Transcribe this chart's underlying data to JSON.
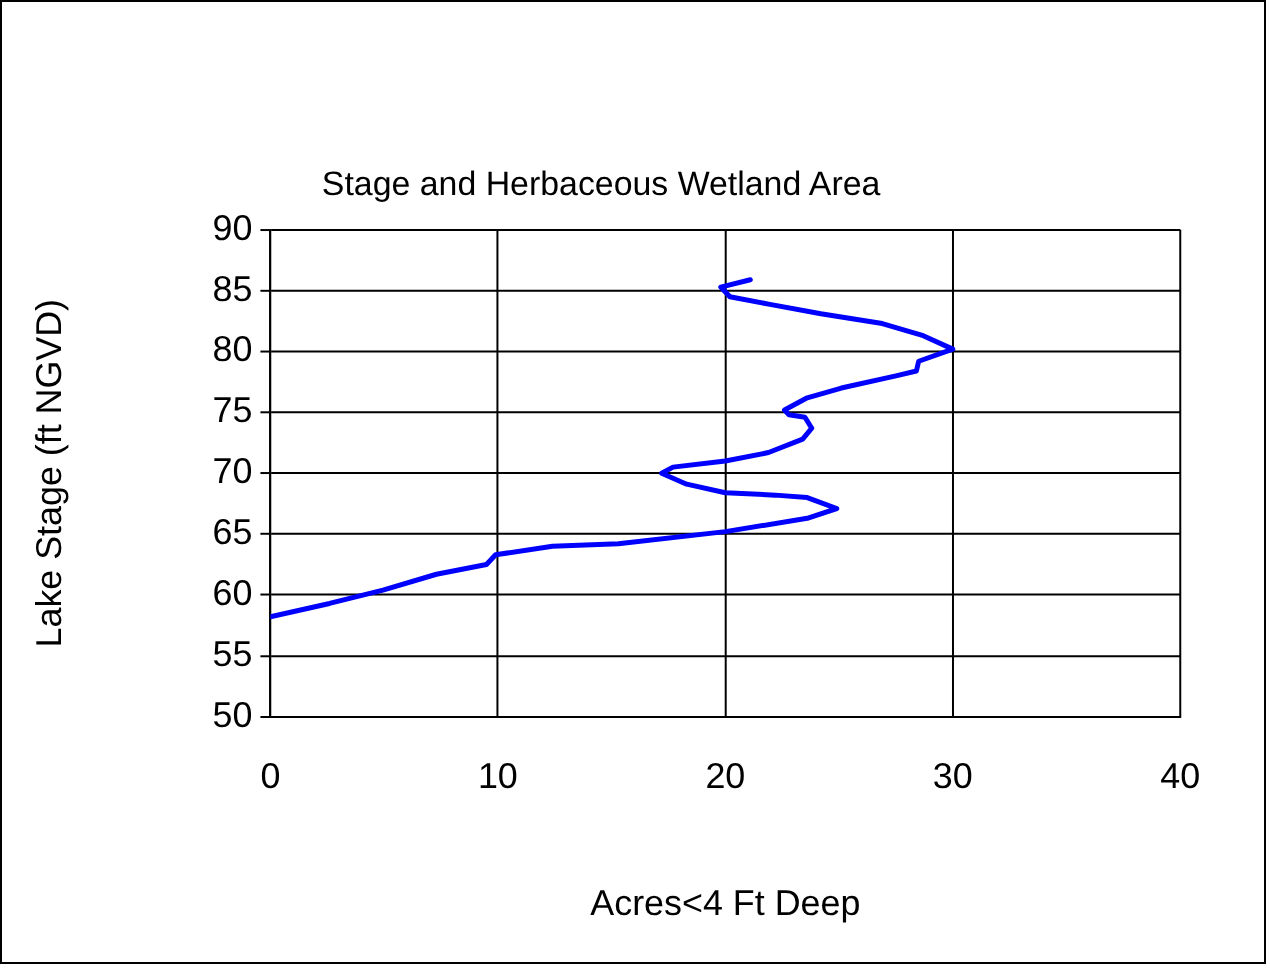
{
  "chart_data": {
    "type": "line",
    "title": "Stage and Herbaceous Wetland Area",
    "xlabel": "Acres<4 Ft Deep",
    "ylabel": "Lake Stage (ft NGVD)",
    "xlim": [
      0,
      40
    ],
    "xticks": [
      0,
      10,
      20,
      30,
      40
    ],
    "ylim": [
      50,
      90
    ],
    "yticks": [
      50,
      55,
      60,
      65,
      70,
      75,
      80,
      85,
      90
    ],
    "grid": true,
    "legend": false,
    "marker": "none",
    "line_style": "solid",
    "series": [
      {
        "color": "#0000ff",
        "x": [
          0,
          2.6,
          4.95,
          7.3,
          9.5,
          9.9,
          12.4,
          15.3,
          20,
          23.6,
          24.9,
          23.6,
          22.2,
          20,
          18.3,
          17.2,
          17.7,
          20,
          21.9,
          23.4,
          23.8,
          23.5,
          22.8,
          22.6,
          23.6,
          25.1,
          27.5,
          28.4,
          28.5,
          30.0,
          28.7,
          26.9,
          24.2,
          21.9,
          20.2,
          19.8,
          21.1
        ],
        "values": [
          58.2,
          59.3,
          60.4,
          61.7,
          62.5,
          63.3,
          64.0,
          64.2,
          65.2,
          66.3,
          67.1,
          68.0,
          68.2,
          68.4,
          69.1,
          70.0,
          70.5,
          71.0,
          71.7,
          72.8,
          73.7,
          74.6,
          74.8,
          75.2,
          76.2,
          77.0,
          78.0,
          78.4,
          79.2,
          80.2,
          81.3,
          82.3,
          83.1,
          83.9,
          84.5,
          85.3,
          85.9
        ]
      }
    ]
  }
}
